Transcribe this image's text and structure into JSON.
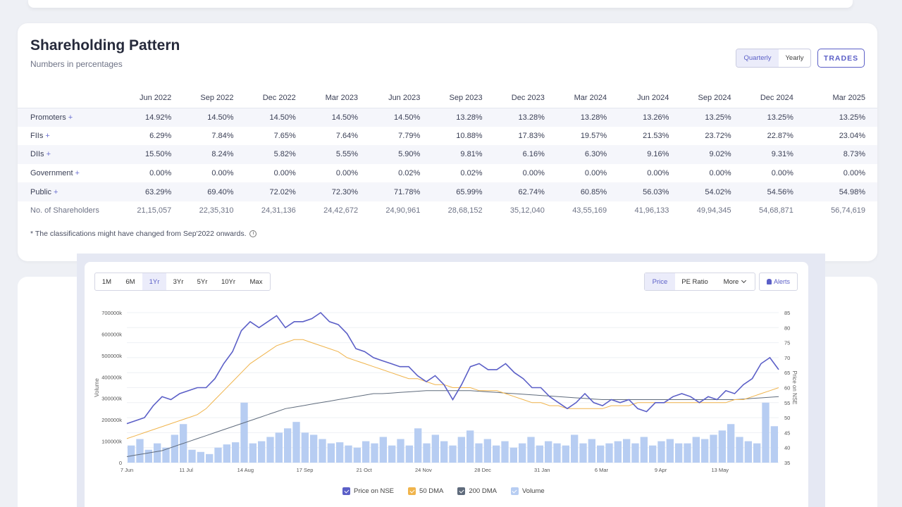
{
  "shareholding": {
    "title": "Shareholding Pattern",
    "subtitle": "Numbers in percentages",
    "toggle": {
      "quarterly": "Quarterly",
      "yearly": "Yearly"
    },
    "trades_label": "TRADES",
    "columns": [
      "Jun 2022",
      "Sep 2022",
      "Dec 2022",
      "Mar 2023",
      "Jun 2023",
      "Sep 2023",
      "Dec 2023",
      "Mar 2024",
      "Jun 2024",
      "Sep 2024",
      "Dec 2024",
      "Mar 2025"
    ],
    "rows": [
      {
        "label": "Promoters",
        "expand": "+",
        "values": [
          "14.92%",
          "14.50%",
          "14.50%",
          "14.50%",
          "14.50%",
          "13.28%",
          "13.28%",
          "13.28%",
          "13.26%",
          "13.25%",
          "13.25%",
          "13.25%"
        ]
      },
      {
        "label": "FIIs",
        "expand": "+",
        "values": [
          "6.29%",
          "7.84%",
          "7.65%",
          "7.64%",
          "7.79%",
          "10.88%",
          "17.83%",
          "19.57%",
          "21.53%",
          "23.72%",
          "22.87%",
          "23.04%"
        ]
      },
      {
        "label": "DIIs",
        "expand": "+",
        "values": [
          "15.50%",
          "8.24%",
          "5.82%",
          "5.55%",
          "5.90%",
          "9.81%",
          "6.16%",
          "6.30%",
          "9.16%",
          "9.02%",
          "9.31%",
          "8.73%"
        ]
      },
      {
        "label": "Government",
        "expand": "+",
        "values": [
          "0.00%",
          "0.00%",
          "0.00%",
          "0.00%",
          "0.02%",
          "0.02%",
          "0.00%",
          "0.00%",
          "0.00%",
          "0.00%",
          "0.00%",
          "0.00%"
        ]
      },
      {
        "label": "Public",
        "expand": "+",
        "values": [
          "63.29%",
          "69.40%",
          "72.02%",
          "72.30%",
          "71.78%",
          "65.99%",
          "62.74%",
          "60.85%",
          "56.03%",
          "54.02%",
          "54.56%",
          "54.98%"
        ]
      },
      {
        "label": "No. of Shareholders",
        "expand": "",
        "values": [
          "21,15,057",
          "22,35,310",
          "24,31,136",
          "24,42,672",
          "24,90,961",
          "28,68,152",
          "35,12,040",
          "43,55,169",
          "41,96,133",
          "49,94,345",
          "54,68,871",
          "56,74,619"
        ]
      }
    ],
    "note": "* The classifications might have changed from Sep'2022 onwards.",
    "note_icon": "i"
  },
  "chart_controls": {
    "ranges": [
      "1M",
      "6M",
      "1Yr",
      "3Yr",
      "5Yr",
      "10Yr",
      "Max"
    ],
    "selected_range": "1Yr",
    "modes": {
      "price": "Price",
      "pe": "PE Ratio",
      "more": "More"
    },
    "alerts_label": "Alerts"
  },
  "colors": {
    "price": "#5b5fc7",
    "dma50": "#f0b44c",
    "dma200": "#5f6b7c",
    "volume": "#b7cdf2"
  },
  "chart_data": {
    "type": "line",
    "title": "",
    "y_left_label": "Volume",
    "y_right_label": "Price on NSE",
    "y_left_ticks": [
      "0",
      "100000k",
      "200000k",
      "300000k",
      "400000k",
      "500000k",
      "600000k",
      "700000k"
    ],
    "y_left_range": [
      0,
      700000
    ],
    "y_right_ticks": [
      "35",
      "40",
      "45",
      "50",
      "55",
      "60",
      "65",
      "70",
      "75",
      "80",
      "85"
    ],
    "y_right_range": [
      35,
      85
    ],
    "x_ticks": [
      "7 Jun",
      "11 Jul",
      "14 Aug",
      "17 Sep",
      "21 Oct",
      "24 Nov",
      "28 Dec",
      "31 Jan",
      "6 Mar",
      "9 Apr",
      "13 May"
    ],
    "legend": [
      "Price on NSE",
      "50 DMA",
      "200 DMA",
      "Volume"
    ],
    "price": [
      48,
      49,
      50,
      54,
      57,
      56,
      58,
      59,
      60,
      60,
      63,
      68,
      72,
      79,
      82,
      80,
      82,
      84,
      80,
      82,
      82,
      83,
      85,
      82,
      81,
      78,
      73,
      72,
      70,
      69,
      68,
      67,
      67,
      64,
      62,
      64,
      61,
      56,
      61,
      67,
      68,
      66,
      66,
      68,
      65,
      63,
      60,
      60,
      57,
      55,
      53,
      55,
      58,
      55,
      54,
      56,
      55,
      56,
      53,
      52,
      55,
      55,
      57,
      58,
      57,
      55,
      57,
      56,
      59,
      58,
      61,
      63,
      68,
      70,
      66
    ],
    "dma50": [
      43,
      44,
      45,
      46,
      47,
      48,
      49,
      50,
      51,
      53,
      56,
      59,
      62,
      65,
      68,
      70,
      72,
      74,
      75,
      76,
      76,
      75,
      74,
      73,
      72,
      70,
      69,
      68,
      67,
      66,
      65,
      64,
      63,
      63,
      62,
      61,
      61,
      60,
      60,
      60,
      59,
      59,
      59,
      58,
      57,
      56,
      55,
      55,
      54,
      54,
      53,
      53,
      53,
      53,
      53,
      54,
      54,
      54,
      55,
      55,
      55,
      55,
      55,
      55,
      55,
      55,
      55,
      55,
      55,
      56,
      56,
      57,
      58,
      59,
      60
    ],
    "dma200": [
      37,
      37.5,
      38,
      38.5,
      39,
      40,
      41,
      42,
      43,
      44,
      45,
      46,
      47,
      48,
      49,
      50,
      51,
      52,
      53,
      53.5,
      54,
      54.5,
      55,
      55.5,
      56,
      56.5,
      57,
      57.5,
      58,
      58,
      58.2,
      58.4,
      58.6,
      58.8,
      59,
      59,
      59,
      59,
      59,
      59,
      58.8,
      58.6,
      58.4,
      58.2,
      58,
      57.8,
      57.6,
      57.4,
      57.2,
      57,
      56.8,
      56.6,
      56.4,
      56.2,
      56,
      56,
      56,
      56,
      56,
      56,
      56,
      56,
      56,
      56,
      56,
      56,
      56,
      56,
      56,
      56,
      56.2,
      56.4,
      56.6,
      56.8,
      57
    ],
    "volume": [
      80,
      110,
      60,
      90,
      70,
      130,
      180,
      60,
      50,
      40,
      70,
      85,
      95,
      280,
      90,
      100,
      120,
      140,
      160,
      190,
      140,
      130,
      110,
      90,
      95,
      80,
      70,
      100,
      90,
      120,
      80,
      110,
      80,
      160,
      90,
      130,
      100,
      80,
      120,
      150,
      90,
      110,
      80,
      100,
      70,
      90,
      120,
      80,
      100,
      90,
      80,
      130,
      90,
      110,
      80,
      90,
      100,
      110,
      90,
      120,
      80,
      100,
      110,
      90,
      90,
      120,
      110,
      130,
      150,
      180,
      120,
      100,
      90,
      280,
      170
    ]
  }
}
